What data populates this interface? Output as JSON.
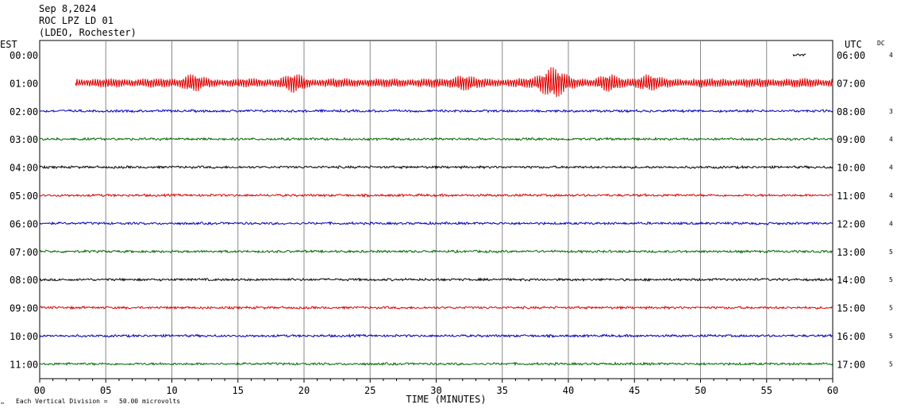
{
  "header": {
    "date": "Sep 8,2024",
    "station": "ROC LPZ LD 01",
    "network": "(LDEO, Rochester)"
  },
  "left_zone": "EST",
  "right_zone": "UTC",
  "dc_label": "DC",
  "footer_note": "Each Vertical Division =   50.00 microvolts",
  "footer_mark": "™",
  "chart_data": {
    "type": "line",
    "xlabel": "TIME (MINUTES)",
    "xlim": [
      0,
      60
    ],
    "x_ticks": [
      "00",
      "05",
      "10",
      "15",
      "20",
      "25",
      "30",
      "35",
      "40",
      "45",
      "50",
      "55",
      "60"
    ],
    "rows": [
      {
        "est": "00:00",
        "utc": "06:00",
        "dc": "4",
        "color": "#000000"
      },
      {
        "est": "01:00",
        "utc": "07:00",
        "dc": "",
        "color": "#dd0000"
      },
      {
        "est": "02:00",
        "utc": "08:00",
        "dc": "3",
        "color": "#0000bb"
      },
      {
        "est": "03:00",
        "utc": "09:00",
        "dc": "4",
        "color": "#006600"
      },
      {
        "est": "04:00",
        "utc": "10:00",
        "dc": "4",
        "color": "#000000"
      },
      {
        "est": "05:00",
        "utc": "11:00",
        "dc": "4",
        "color": "#dd0000"
      },
      {
        "est": "06:00",
        "utc": "12:00",
        "dc": "4",
        "color": "#0000bb"
      },
      {
        "est": "07:00",
        "utc": "13:00",
        "dc": "5",
        "color": "#006600"
      },
      {
        "est": "08:00",
        "utc": "14:00",
        "dc": "5",
        "color": "#000000"
      },
      {
        "est": "09:00",
        "utc": "15:00",
        "dc": "5",
        "color": "#dd0000"
      },
      {
        "est": "10:00",
        "utc": "16:00",
        "dc": "5",
        "color": "#0000bb"
      },
      {
        "est": "11:00",
        "utc": "17:00",
        "dc": "5",
        "color": "#006600"
      }
    ],
    "trace_start_minute": [
      57,
      2.7,
      0,
      0,
      0,
      0,
      0,
      0,
      0,
      0,
      0,
      0
    ],
    "trace_end_minute": [
      58,
      60,
      60,
      60,
      60,
      60,
      60,
      60,
      60,
      60,
      60,
      60
    ],
    "event_bursts_row1": [
      {
        "minute": 11.5,
        "amp": 1.0
      },
      {
        "minute": 19.3,
        "amp": 1.1
      },
      {
        "minute": 32.0,
        "amp": 0.9
      },
      {
        "minute": 38.8,
        "amp": 2.6
      },
      {
        "minute": 43.0,
        "amp": 1.0
      },
      {
        "minute": 46.0,
        "amp": 1.0
      }
    ]
  }
}
